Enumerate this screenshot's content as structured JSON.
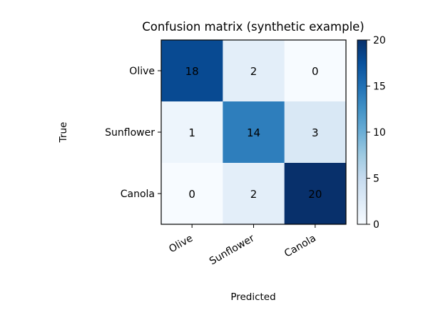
{
  "chart_data": {
    "type": "heatmap",
    "title": "Confusion matrix (synthetic example)",
    "xlabel": "Predicted",
    "ylabel": "True",
    "x_categories": [
      "Olive",
      "Sunflower",
      "Canola"
    ],
    "y_categories": [
      "Olive",
      "Sunflower",
      "Canola"
    ],
    "values": [
      [
        18,
        2,
        0
      ],
      [
        1,
        14,
        3
      ],
      [
        0,
        2,
        20
      ]
    ],
    "colorbar": {
      "min": 0,
      "max": 20,
      "ticks": [
        "0",
        "5",
        "10",
        "15",
        "20"
      ]
    },
    "colormap": "Blues",
    "grid": false,
    "x_tick_rotation": "30 degrees",
    "legend": "colorbar-right"
  }
}
